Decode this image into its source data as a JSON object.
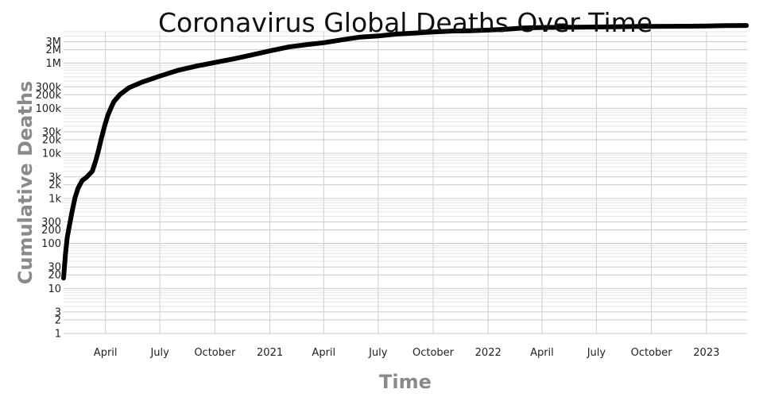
{
  "chart_data": {
    "type": "line",
    "title": "Coronavirus Global Deaths Over Time",
    "xlabel": "Time",
    "ylabel": "Cumulative Deaths",
    "xlim": [
      "2020-01-22",
      "2023-03-10"
    ],
    "ylim": [
      1,
      5000000
    ],
    "y_scale": "log",
    "grid": true,
    "x_ticks": [
      {
        "date": "2020-04-01",
        "label": "April"
      },
      {
        "date": "2020-07-01",
        "label": "July"
      },
      {
        "date": "2020-10-01",
        "label": "October"
      },
      {
        "date": "2021-01-01",
        "label": "2021"
      },
      {
        "date": "2021-04-01",
        "label": "April"
      },
      {
        "date": "2021-07-01",
        "label": "July"
      },
      {
        "date": "2021-10-01",
        "label": "October"
      },
      {
        "date": "2022-01-01",
        "label": "2022"
      },
      {
        "date": "2022-04-01",
        "label": "April"
      },
      {
        "date": "2022-07-01",
        "label": "July"
      },
      {
        "date": "2022-10-01",
        "label": "October"
      },
      {
        "date": "2023-01-01",
        "label": "2023"
      }
    ],
    "y_ticks": [
      {
        "value": 1,
        "label": "1"
      },
      {
        "value": 2,
        "label": "2"
      },
      {
        "value": 3,
        "label": "3"
      },
      {
        "value": 10,
        "label": "10"
      },
      {
        "value": 20,
        "label": "20"
      },
      {
        "value": 30,
        "label": "30"
      },
      {
        "value": 100,
        "label": "100"
      },
      {
        "value": 200,
        "label": "200"
      },
      {
        "value": 300,
        "label": "300"
      },
      {
        "value": 1000,
        "label": "1k"
      },
      {
        "value": 2000,
        "label": "2k"
      },
      {
        "value": 3000,
        "label": "3k"
      },
      {
        "value": 10000,
        "label": "10k"
      },
      {
        "value": 20000,
        "label": "20k"
      },
      {
        "value": 30000,
        "label": "30k"
      },
      {
        "value": 100000,
        "label": "100k"
      },
      {
        "value": 200000,
        "label": "200k"
      },
      {
        "value": 300000,
        "label": "300k"
      },
      {
        "value": 1000000,
        "label": "1M"
      },
      {
        "value": 2000000,
        "label": "2M"
      },
      {
        "value": 3000000,
        "label": "3M"
      }
    ],
    "series": [
      {
        "x": [
          "2020-01-22",
          "2020-01-25",
          "2020-01-28",
          "2020-02-01",
          "2020-02-05",
          "2020-02-10",
          "2020-02-15",
          "2020-02-22",
          "2020-03-01",
          "2020-03-10",
          "2020-03-16",
          "2020-03-20",
          "2020-03-25",
          "2020-03-31",
          "2020-04-05",
          "2020-04-10",
          "2020-04-15",
          "2020-04-25",
          "2020-05-10",
          "2020-06-01",
          "2020-07-01",
          "2020-08-01",
          "2020-09-01",
          "2020-10-01",
          "2020-11-01",
          "2020-12-01",
          "2021-01-01",
          "2021-02-01",
          "2021-03-01",
          "2021-04-01",
          "2021-05-01",
          "2021-06-01",
          "2021-07-01",
          "2021-08-01",
          "2021-09-01",
          "2021-10-01",
          "2021-11-01",
          "2021-12-01",
          "2022-01-01",
          "2022-02-01",
          "2022-03-01",
          "2022-04-01",
          "2022-05-01",
          "2022-06-01",
          "2022-07-01",
          "2022-08-01",
          "2022-09-01",
          "2022-10-01",
          "2022-11-01",
          "2022-12-01",
          "2023-01-01",
          "2023-02-01",
          "2023-03-09"
        ],
        "values": [
          17,
          56,
          132,
          259,
          490,
          1016,
          1666,
          2470,
          3000,
          4000,
          7000,
          11000,
          21000,
          42000,
          70000,
          100000,
          140000,
          200000,
          285000,
          380000,
          520000,
          700000,
          870000,
          1040000,
          1250000,
          1520000,
          1880000,
          2290000,
          2570000,
          2860000,
          3300000,
          3810000,
          4040000,
          4440000,
          4690000,
          4940000,
          5180000,
          5270000,
          5450000,
          5690000,
          6050000,
          6220000,
          6280000,
          6320000,
          6370000,
          6450000,
          6530000,
          6580000,
          6620000,
          6650000,
          6710000,
          6830000,
          6880000
        ]
      }
    ]
  }
}
